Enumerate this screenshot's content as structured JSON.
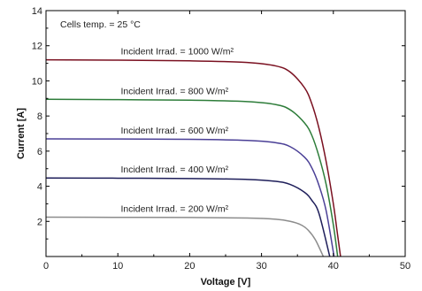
{
  "chart_data": {
    "type": "line",
    "xlabel": "Voltage [V]",
    "ylabel": "Current [A]",
    "xlim": [
      0,
      50
    ],
    "ylim": [
      0,
      14
    ],
    "xticks": [
      0,
      10,
      20,
      30,
      40,
      50
    ],
    "yticks": [
      0,
      2,
      4,
      6,
      8,
      10,
      12,
      14
    ],
    "grid": false,
    "annotation": "Cells temp. = 25 °C",
    "series": [
      {
        "name": "Incident Irrad. = 1000 W/m²",
        "color": "#7a1020",
        "x": [
          0,
          10,
          20,
          28,
          32,
          34,
          36,
          37,
          38,
          39,
          40,
          40.5,
          41
        ],
        "y": [
          11.2,
          11.18,
          11.14,
          11.05,
          10.85,
          10.5,
          9.6,
          8.7,
          7.3,
          5.4,
          3.0,
          1.5,
          0
        ]
      },
      {
        "name": "Incident Irrad. = 800 W/m²",
        "color": "#2e7d3a",
        "x": [
          0,
          10,
          20,
          28,
          32,
          34,
          36,
          37,
          38,
          39,
          40,
          40.6
        ],
        "y": [
          8.95,
          8.93,
          8.9,
          8.82,
          8.65,
          8.35,
          7.6,
          6.9,
          5.7,
          4.1,
          1.8,
          0
        ]
      },
      {
        "name": "Incident Irrad. = 600 W/m²",
        "color": "#4a3f96",
        "x": [
          0,
          10,
          20,
          28,
          32,
          34,
          36,
          37,
          38,
          39,
          40.1
        ],
        "y": [
          6.7,
          6.69,
          6.67,
          6.61,
          6.48,
          6.25,
          5.65,
          5.05,
          4.05,
          2.6,
          0
        ]
      },
      {
        "name": "Incident Irrad. = 400 W/m²",
        "color": "#1e1e5a",
        "x": [
          0,
          10,
          20,
          28,
          32,
          34,
          36,
          37,
          38,
          39.5
        ],
        "y": [
          4.47,
          4.46,
          4.44,
          4.39,
          4.28,
          4.1,
          3.65,
          3.2,
          2.45,
          0
        ]
      },
      {
        "name": "Incident Irrad. = 200 W/m²",
        "color": "#8c8c8c",
        "x": [
          0,
          10,
          20,
          28,
          32,
          34,
          35.5,
          36.5,
          37.5,
          38.6
        ],
        "y": [
          2.24,
          2.23,
          2.22,
          2.19,
          2.12,
          2.0,
          1.8,
          1.5,
          0.95,
          0
        ]
      }
    ]
  }
}
